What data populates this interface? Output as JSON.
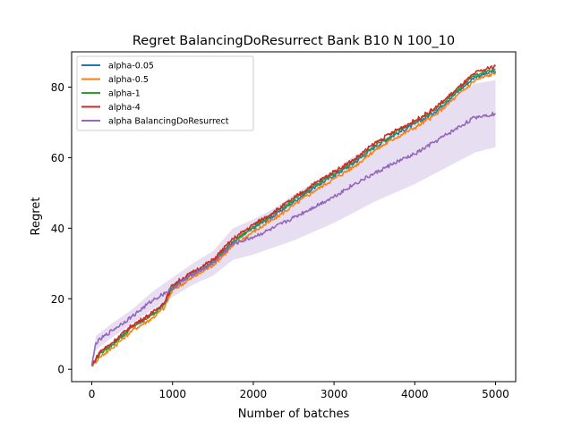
{
  "chart_data": {
    "type": "line",
    "title": "Regret BalancingDoResurrect Bank B10 N 100_10",
    "xlabel": "Number of batches",
    "ylabel": "Regret",
    "xlim": [
      -250,
      5250
    ],
    "ylim": [
      -3.5,
      90
    ],
    "xticks": [
      0,
      1000,
      2000,
      3000,
      4000,
      5000
    ],
    "xtick_labels": [
      "0",
      "1000",
      "2000",
      "3000",
      "4000",
      "5000"
    ],
    "yticks": [
      0,
      20,
      40,
      60,
      80
    ],
    "ytick_labels": [
      "0",
      "20",
      "40",
      "60",
      "80"
    ],
    "grid": false,
    "legend_position": "top-left",
    "series": [
      {
        "name": "alpha-0.05",
        "color": "#1f77b4",
        "x": [
          0,
          100,
          250,
          500,
          750,
          900,
          1000,
          1250,
          1500,
          1750,
          2000,
          2250,
          2500,
          2750,
          3000,
          3250,
          3500,
          3750,
          4000,
          4250,
          4500,
          4750,
          5000
        ],
        "y": [
          1,
          4.5,
          7,
          12,
          15.5,
          18.5,
          23.5,
          27,
          30.5,
          36,
          40,
          43.5,
          47.5,
          51.5,
          55,
          58.5,
          63,
          66.5,
          69.5,
          73,
          78,
          83,
          84.5
        ]
      },
      {
        "name": "alpha-0.5",
        "color": "#ff7f0e",
        "x": [
          0,
          100,
          250,
          500,
          750,
          900,
          1000,
          1250,
          1500,
          1750,
          2000,
          2250,
          2500,
          2750,
          3000,
          3250,
          3500,
          3750,
          4000,
          4250,
          4500,
          4750,
          5000
        ],
        "y": [
          1,
          3.5,
          6,
          11,
          14.5,
          17.5,
          22.5,
          26,
          29.5,
          35,
          39,
          42.5,
          46.5,
          50.5,
          54,
          57.5,
          62,
          65.5,
          68.5,
          72,
          77,
          82,
          84
        ]
      },
      {
        "name": "alpha-1",
        "color": "#2ca02c",
        "x": [
          0,
          100,
          250,
          500,
          750,
          900,
          1000,
          1250,
          1500,
          1750,
          2000,
          2250,
          2500,
          2750,
          3000,
          3250,
          3500,
          3750,
          4000,
          4250,
          4500,
          4750,
          5000
        ],
        "y": [
          1,
          4.5,
          7,
          12,
          15.5,
          18.5,
          23.5,
          27,
          30.5,
          36,
          40.5,
          44,
          48,
          52,
          55.5,
          59,
          63.5,
          67,
          70,
          73.5,
          78.5,
          83.5,
          85
        ]
      },
      {
        "name": "alpha-4",
        "color": "#d62728",
        "x": [
          0,
          100,
          250,
          500,
          750,
          900,
          1000,
          1250,
          1500,
          1750,
          2000,
          2250,
          2500,
          2750,
          3000,
          3250,
          3500,
          3750,
          4000,
          4250,
          4500,
          4750,
          5000
        ],
        "y": [
          1,
          5,
          7.5,
          12.5,
          16,
          19,
          24,
          27.5,
          31,
          37,
          41,
          44.5,
          48.5,
          52.5,
          56,
          59.5,
          64,
          67.5,
          70.5,
          74,
          79,
          84,
          86
        ]
      },
      {
        "name": "alpha BalancingDoResurrect",
        "color": "#9467bd",
        "x": [
          0,
          50,
          250,
          500,
          750,
          1000,
          1250,
          1500,
          1750,
          2000,
          2250,
          2500,
          2750,
          3000,
          3250,
          3500,
          3750,
          4000,
          4250,
          4500,
          4750,
          5000
        ],
        "y": [
          1,
          7.5,
          11,
          15,
          19.5,
          23,
          27,
          30,
          35.5,
          37.5,
          40,
          43,
          46,
          49,
          52.5,
          55.5,
          58.5,
          61,
          64.5,
          68,
          71.5,
          72.5
        ],
        "band_lower": [
          0.5,
          5.5,
          9,
          13,
          17,
          20.5,
          24,
          26.5,
          31,
          32.5,
          34.5,
          36.5,
          39,
          41.5,
          44.5,
          47.5,
          50,
          52.5,
          55.5,
          58.5,
          61.5,
          63
        ],
        "band_upper": [
          1.5,
          9.5,
          13,
          17,
          22,
          26,
          30,
          33.5,
          40,
          42.5,
          45.5,
          49.5,
          53,
          56.5,
          60.5,
          63.5,
          67,
          69.5,
          73.5,
          77.5,
          81,
          82
        ]
      }
    ]
  }
}
